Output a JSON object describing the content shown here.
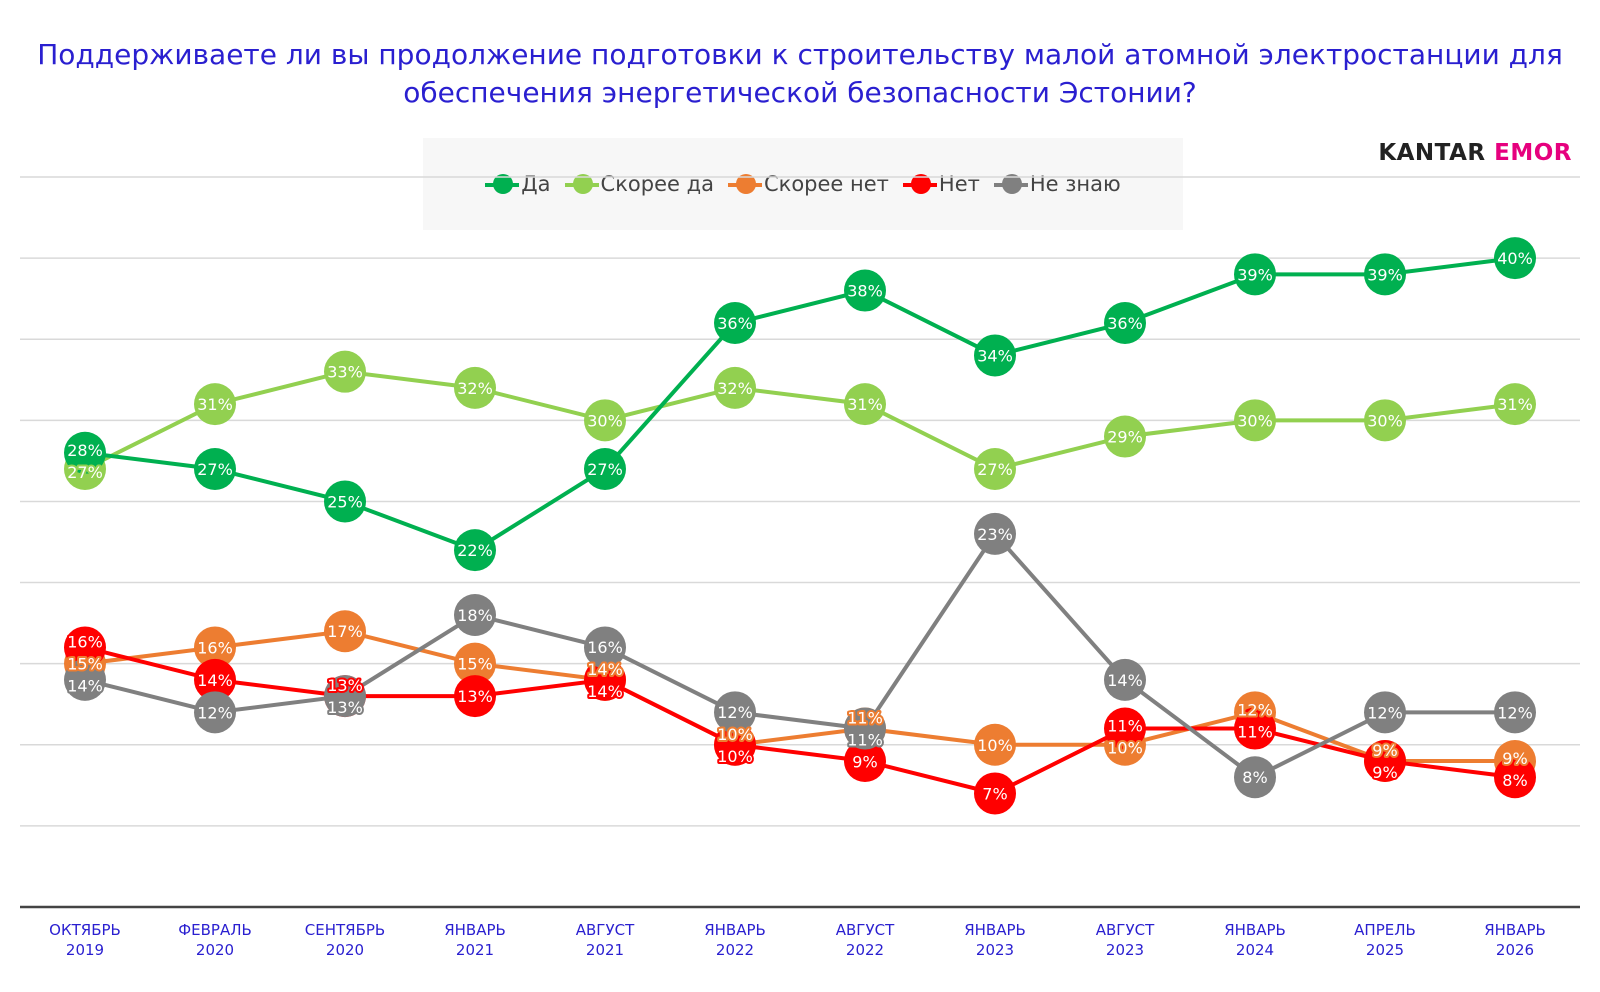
{
  "chart_data": {
    "type": "line",
    "title": "Поддерживаете ли вы продолжение подготовки к строительству малой атомной электростанции для обеспечения энергетической безопасности Эстонии?",
    "categories": [
      [
        "ОКТЯБРЬ",
        "2019"
      ],
      [
        "ФЕВРАЛЬ",
        "2020"
      ],
      [
        "СЕНТЯБРЬ",
        "2020"
      ],
      [
        "ЯНВАРЬ",
        "2021"
      ],
      [
        "АВГУСТ",
        "2021"
      ],
      [
        "ЯНВАРЬ",
        "2022"
      ],
      [
        "АВГУСТ",
        "2022"
      ],
      [
        "ЯНВАРЬ",
        "2023"
      ],
      [
        "АВГУСТ",
        "2023"
      ],
      [
        "ЯНВАРЬ",
        "2024"
      ],
      [
        "АПРЕЛЬ",
        "2025"
      ],
      [
        "ЯНВАРЬ",
        "2026"
      ]
    ],
    "ylim": [
      0,
      45
    ],
    "grid": true,
    "grid_step": 5,
    "legend_position": "top",
    "unit": "%",
    "series": [
      {
        "name": "Да",
        "color": "#00b050",
        "values": [
          28,
          27,
          25,
          22,
          27,
          36,
          38,
          34,
          36,
          39,
          39,
          40
        ]
      },
      {
        "name": "Скорее да",
        "color": "#92d050",
        "values": [
          27,
          31,
          33,
          32,
          30,
          32,
          31,
          27,
          29,
          30,
          30,
          31
        ]
      },
      {
        "name": "Скорее нет",
        "color": "#ed7d31",
        "values": [
          15,
          16,
          17,
          15,
          14,
          10,
          11,
          10,
          10,
          12,
          9,
          9
        ]
      },
      {
        "name": "Нет",
        "color": "#ff0000",
        "values": [
          16,
          14,
          13,
          13,
          14,
          10,
          9,
          7,
          11,
          11,
          9,
          8
        ]
      },
      {
        "name": "Не знаю",
        "color": "#808080",
        "values": [
          14,
          12,
          13,
          18,
          16,
          12,
          11,
          23,
          14,
          8,
          12,
          12
        ]
      }
    ]
  },
  "logo": {
    "part1": "KANTAR",
    "part2": "EMOR"
  }
}
